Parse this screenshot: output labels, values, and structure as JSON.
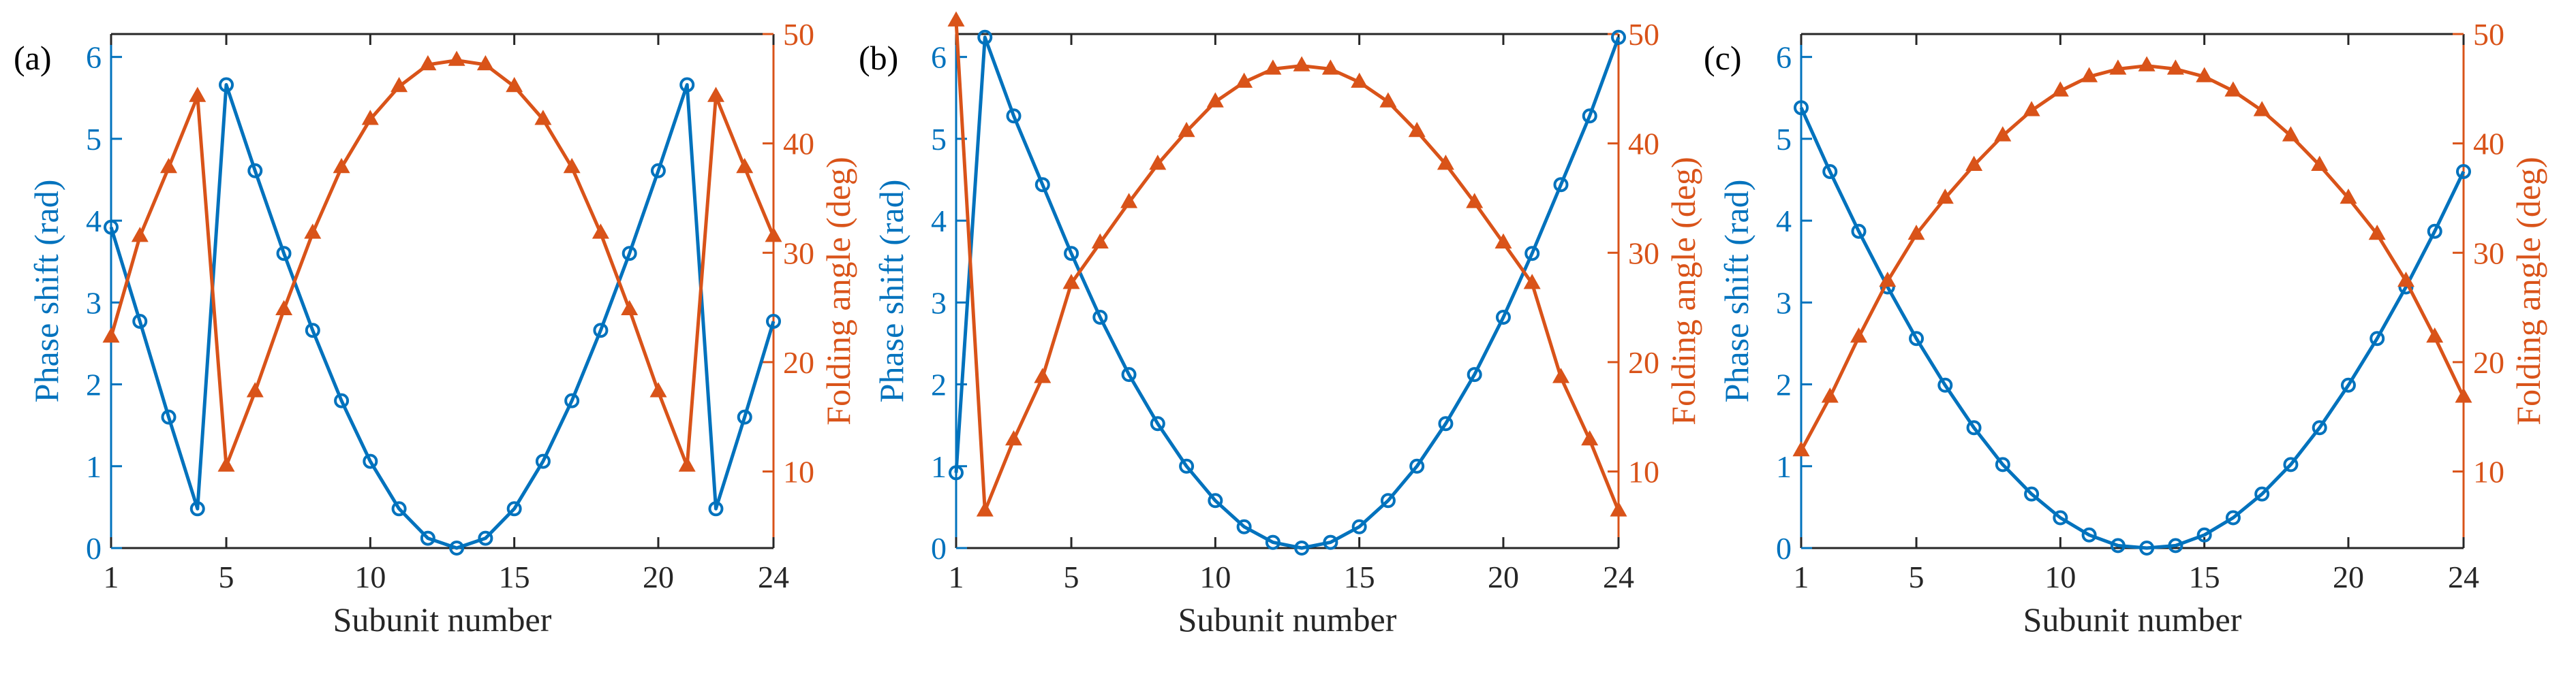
{
  "figure": {
    "colors": {
      "left_axis": "#0072BD",
      "right_axis": "#D95319",
      "frame": "#262626"
    }
  },
  "chart_data": [
    {
      "type": "line",
      "panel_label": "(a)",
      "xlabel": "Subunit number",
      "ylabel_left": "Phase shift (rad)",
      "ylabel_right": "Folding angle (deg)",
      "xlim": [
        1,
        24
      ],
      "ylim_left": [
        0,
        6.28
      ],
      "ylim_right": [
        3,
        50
      ],
      "x_ticks": [
        1,
        5,
        10,
        15,
        20,
        24
      ],
      "y_ticks_left": [
        0,
        1,
        2,
        3,
        4,
        5,
        6
      ],
      "y_ticks_right": [
        10,
        20,
        30,
        40,
        50
      ],
      "grid": false,
      "series": [
        {
          "axis": "left",
          "marker": "circle",
          "color": "#0072BD",
          "x": [
            1,
            2,
            3,
            4,
            5,
            6,
            7,
            8,
            9,
            10,
            11,
            12,
            13,
            14,
            15,
            16,
            17,
            18,
            19,
            20,
            21,
            22,
            23,
            24
          ],
          "y": [
            3.92,
            2.77,
            1.6,
            0.48,
            5.66,
            4.61,
            3.6,
            2.66,
            1.8,
            1.06,
            0.48,
            0.12,
            0.0,
            0.12,
            0.48,
            1.06,
            1.8,
            2.66,
            3.6,
            4.61,
            5.66,
            0.48,
            1.6,
            2.77
          ]
        },
        {
          "axis": "right",
          "marker": "triangle",
          "color": "#D95319",
          "x": [
            1,
            2,
            3,
            4,
            5,
            6,
            7,
            8,
            9,
            10,
            11,
            12,
            13,
            14,
            15,
            16,
            17,
            18,
            19,
            20,
            21,
            22,
            23,
            24
          ],
          "y": [
            22.3,
            31.5,
            37.8,
            44.3,
            10.5,
            17.3,
            24.8,
            31.8,
            37.8,
            42.2,
            45.2,
            47.2,
            47.6,
            47.2,
            45.2,
            42.2,
            37.8,
            31.8,
            24.8,
            17.3,
            10.5,
            44.3,
            37.8,
            31.5
          ]
        }
      ]
    },
    {
      "type": "line",
      "panel_label": "(b)",
      "xlabel": "Subunit number",
      "ylabel_left": "Phase shift (rad)",
      "ylabel_right": "Folding angle (deg)",
      "xlim": [
        1,
        24
      ],
      "ylim_left": [
        0,
        6.28
      ],
      "ylim_right": [
        3,
        50
      ],
      "x_ticks": [
        1,
        5,
        10,
        15,
        20,
        24
      ],
      "y_ticks_left": [
        0,
        1,
        2,
        3,
        4,
        5,
        6
      ],
      "y_ticks_right": [
        10,
        20,
        30,
        40,
        50
      ],
      "grid": false,
      "series": [
        {
          "axis": "left",
          "marker": "circle",
          "color": "#0072BD",
          "x": [
            1,
            2,
            3,
            4,
            5,
            6,
            7,
            8,
            9,
            10,
            11,
            12,
            13,
            14,
            15,
            16,
            17,
            18,
            19,
            20,
            21,
            22,
            23,
            24
          ],
          "y": [
            0.92,
            6.24,
            5.28,
            4.44,
            3.6,
            2.82,
            2.12,
            1.52,
            1.0,
            0.58,
            0.26,
            0.07,
            0.0,
            0.07,
            0.26,
            0.58,
            1.0,
            1.52,
            2.12,
            2.82,
            3.6,
            4.44,
            5.28,
            6.24
          ]
        },
        {
          "axis": "right",
          "marker": "triangle",
          "color": "#D95319",
          "x": [
            1,
            2,
            3,
            4,
            5,
            6,
            7,
            8,
            9,
            10,
            11,
            12,
            13,
            14,
            15,
            16,
            17,
            18,
            19,
            20,
            21,
            22,
            23,
            24
          ],
          "y": [
            51.2,
            6.4,
            12.9,
            18.6,
            27.2,
            30.9,
            34.6,
            38.1,
            41.1,
            43.8,
            45.6,
            46.8,
            47.1,
            46.8,
            45.6,
            43.8,
            41.1,
            38.1,
            34.6,
            30.9,
            27.2,
            18.6,
            12.9,
            6.4
          ]
        }
      ]
    },
    {
      "type": "line",
      "panel_label": "(c)",
      "xlabel": "Subunit number",
      "ylabel_left": "Phase shift (rad)",
      "ylabel_right": "Folding angle (deg)",
      "xlim": [
        1,
        24
      ],
      "ylim_left": [
        0,
        6.28
      ],
      "ylim_right": [
        3,
        50
      ],
      "x_ticks": [
        1,
        5,
        10,
        15,
        20,
        24
      ],
      "y_ticks_left": [
        0,
        1,
        2,
        3,
        4,
        5,
        6
      ],
      "y_ticks_right": [
        10,
        20,
        30,
        40,
        50
      ],
      "grid": false,
      "series": [
        {
          "axis": "left",
          "marker": "circle",
          "color": "#0072BD",
          "x": [
            1,
            2,
            3,
            4,
            5,
            6,
            7,
            8,
            9,
            10,
            11,
            12,
            13,
            14,
            15,
            16,
            17,
            18,
            19,
            20,
            21,
            22,
            23,
            24
          ],
          "y": [
            5.38,
            4.6,
            3.87,
            3.19,
            2.56,
            1.99,
            1.47,
            1.02,
            0.66,
            0.37,
            0.16,
            0.03,
            0.0,
            0.03,
            0.16,
            0.37,
            0.66,
            1.02,
            1.47,
            1.99,
            2.56,
            3.19,
            3.87,
            4.6
          ]
        },
        {
          "axis": "right",
          "marker": "triangle",
          "color": "#D95319",
          "x": [
            1,
            2,
            3,
            4,
            5,
            6,
            7,
            8,
            9,
            10,
            11,
            12,
            13,
            14,
            15,
            16,
            17,
            18,
            19,
            20,
            21,
            22,
            23,
            24
          ],
          "y": [
            11.9,
            16.8,
            22.3,
            27.4,
            31.7,
            35.0,
            38.0,
            40.7,
            43.0,
            44.8,
            46.1,
            46.8,
            47.1,
            46.8,
            46.1,
            44.8,
            43.0,
            40.7,
            38.0,
            35.0,
            31.7,
            27.4,
            22.3,
            16.8
          ]
        }
      ]
    }
  ]
}
